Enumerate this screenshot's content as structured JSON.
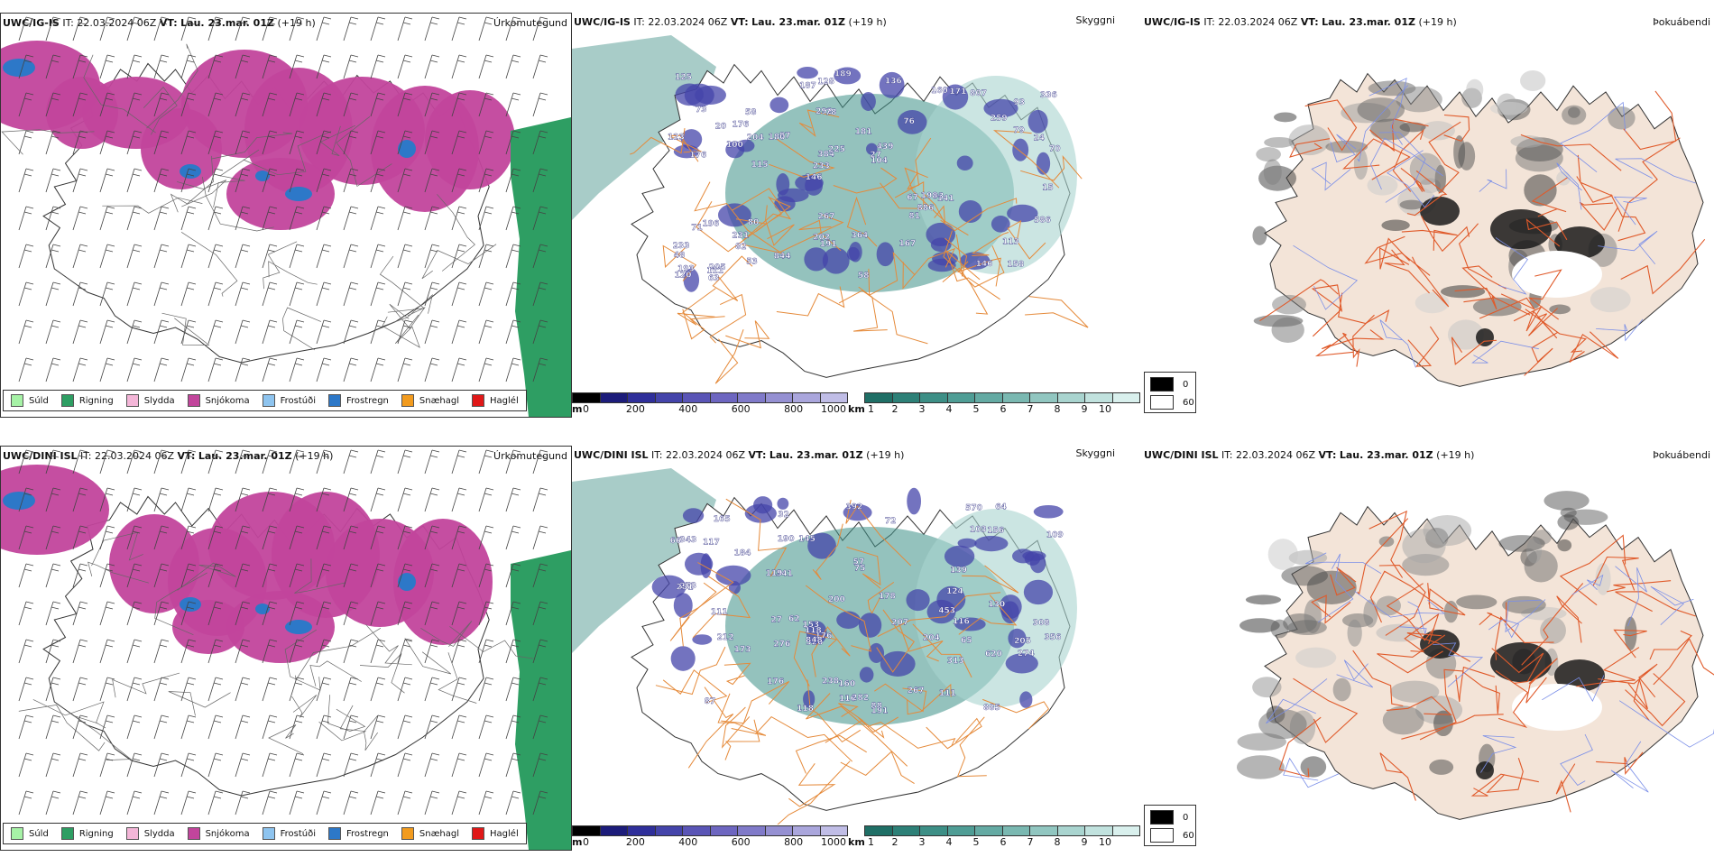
{
  "rows": [
    {
      "model": "UWC/IG-IS",
      "it_label": "IT:",
      "it_value": "22.03.2024 06Z",
      "vt_label": "VT:",
      "vt_value": "Lau. 23.mar. 01Z",
      "lead": "(+19 h)",
      "panel_titles": {
        "precip": "Úrkomutegund",
        "visibility": "Skyggni",
        "fog": "Þokuábendi"
      },
      "snow_labels": [
        "158",
        "176",
        "93",
        "146",
        "76",
        "205",
        "292",
        "181",
        "196",
        "87",
        "48",
        "82",
        "78",
        "439",
        "141",
        "73",
        "128",
        "70",
        "67",
        "79",
        "233",
        "202",
        "384",
        "58",
        "160",
        "80",
        "146",
        "113",
        "93",
        "58",
        "180",
        "100",
        "81",
        "53",
        "24",
        "27",
        "193",
        "191",
        "104",
        "71",
        "259",
        "336",
        "886",
        "167",
        "231",
        "63",
        "120",
        "364",
        "807",
        "189",
        "115",
        "123",
        "176",
        "171",
        "111",
        "136",
        "187",
        "225",
        "586",
        "267",
        "844",
        "198",
        "204",
        "233",
        "125",
        "20",
        "15"
      ]
    },
    {
      "model": "UWC/DINI ISL",
      "it_label": "IT:",
      "it_value": "22.03.2024 06Z",
      "vt_label": "VT:",
      "vt_value": "Lau. 23.mar. 01Z",
      "lead": "(+19 h)",
      "panel_titles": {
        "precip": "Úrkomutegund",
        "visibility": "Skyggni",
        "fog": "Þokuábendi"
      },
      "snow_labels": [
        "343",
        "212",
        "118",
        "453",
        "274",
        "273",
        "251",
        "103",
        "308",
        "145",
        "117",
        "238",
        "109",
        "184",
        "116",
        "276",
        "118",
        "32",
        "72",
        "356",
        "176",
        "173",
        "326",
        "848",
        "160",
        "64",
        "178",
        "111",
        "570",
        "341",
        "190",
        "392",
        "205",
        "88",
        "119",
        "313",
        "65",
        "75",
        "87",
        "62",
        "57",
        "153",
        "191",
        "207",
        "885",
        "139",
        "111",
        "130",
        "176",
        "200",
        "124",
        "116",
        "620",
        "156",
        "267",
        "204",
        "282",
        "165",
        "27",
        "66"
      ]
    }
  ],
  "precip_legend": [
    {
      "label": "Súld",
      "color": "#a6f2a6"
    },
    {
      "label": "Rigning",
      "color": "#2e9e63"
    },
    {
      "label": "Slydda",
      "color": "#f4b6d8"
    },
    {
      "label": "Snjókoma",
      "color": "#c2459c"
    },
    {
      "label": "Frostúði",
      "color": "#8ec4ef"
    },
    {
      "label": "Frostregn",
      "color": "#2d78c8"
    },
    {
      "label": "Snæhagl",
      "color": "#f29b1e"
    },
    {
      "label": "Haglél",
      "color": "#e01818"
    }
  ],
  "height_bar": {
    "unit": "m",
    "ticks": [
      "0",
      "200",
      "400",
      "600",
      "800",
      "1000"
    ],
    "colors": [
      "#000000",
      "#1c1c7a",
      "#2f2f9a",
      "#4444aa",
      "#5a55b6",
      "#6d66c0",
      "#807ac9",
      "#9590d2",
      "#aaa6dc",
      "#c0bde6"
    ]
  },
  "vis_bar": {
    "unit": "km",
    "ticks": [
      "1",
      "2",
      "3",
      "4",
      "5",
      "6",
      "7",
      "8",
      "9",
      "10"
    ],
    "colors": [
      "#1f6f66",
      "#2d8077",
      "#3d8f86",
      "#4f9d95",
      "#64aaa3",
      "#7ab8b1",
      "#91c6c0",
      "#a9d4cf",
      "#c1e2de",
      "#d9f0ed"
    ]
  },
  "fog_legend": [
    {
      "value": "0",
      "color": "#000000"
    },
    {
      "value": "60",
      "color": "#ffffff"
    }
  ],
  "colors": {
    "snow": "#c2459c",
    "rain": "#2e9e63",
    "frzrain": "#2d78c8",
    "frzdrizzle": "#8ec4ef",
    "vis_teal": "#3d8f86",
    "vis_light": "#a9d4cf",
    "snowdepth": "#4444aa",
    "land_fog": "#f3e4d8",
    "road": "#e05a2a",
    "orange_road": "#e58a3a",
    "river": "#7a8ee8"
  }
}
